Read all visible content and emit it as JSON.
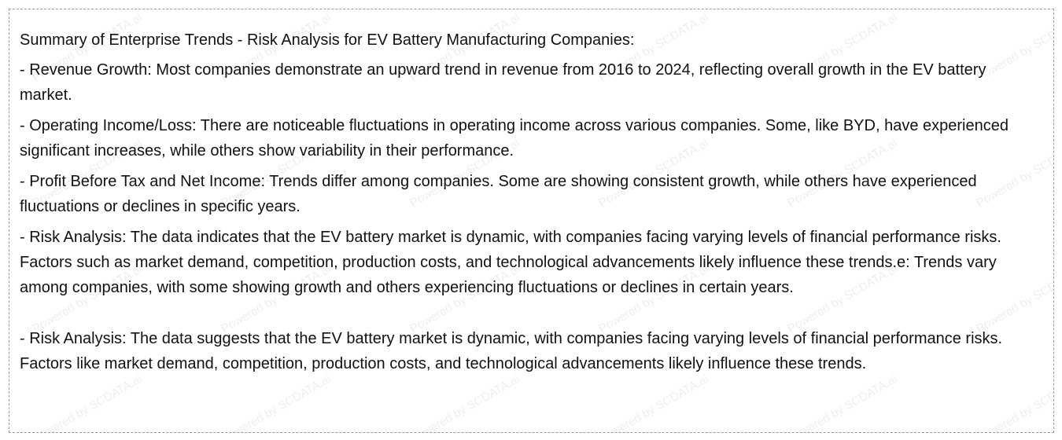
{
  "document": {
    "title": "Summary of Enterprise Trends - Risk Analysis for EV Battery Manufacturing Companies:",
    "paragraphs": [
      "- Revenue Growth: Most companies demonstrate an upward trend in revenue from 2016 to 2024, reflecting overall growth in the EV battery market.",
      "- Operating Income/Loss: There are noticeable fluctuations in operating income across various companies. Some, like BYD, have experienced significant increases, while others show variability in their performance.",
      "- Profit Before Tax and Net Income: Trends differ among companies. Some are showing consistent growth, while others have experienced fluctuations or declines in specific years.",
      "- Risk Analysis: The data indicates that the EV battery market is dynamic, with companies facing varying levels of financial performance risks. Factors such as market demand, competition, production costs, and technological advancements likely influence these trends.e: Trends vary among companies, with some showing growth and others experiencing fluctuations or declines in certain years.",
      "- Risk Analysis: The data suggests that the EV battery market is dynamic, with companies facing varying levels of financial performance risks. Factors like market demand, competition, production costs, and technological advancements likely influence these trends."
    ]
  },
  "watermark": {
    "text": "Powered by SCDATA.ai"
  }
}
